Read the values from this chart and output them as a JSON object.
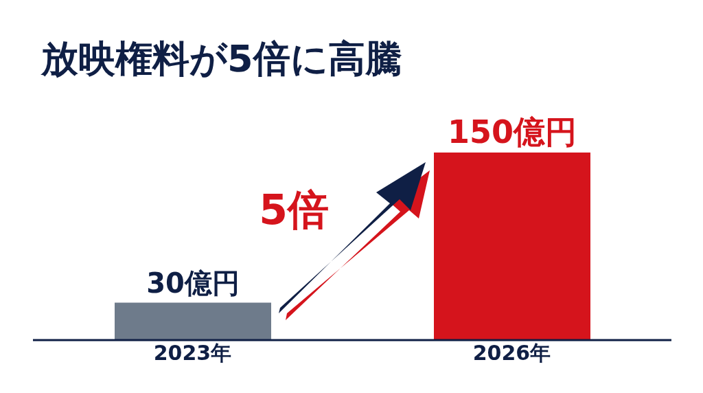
{
  "chart_data": {
    "type": "bar",
    "title": "放映権料が5倍に高騰",
    "categories": [
      "2023年",
      "2026年"
    ],
    "values": [
      30,
      150
    ],
    "colors": [
      "#6e7b8b",
      "#d5141c"
    ],
    "value_labels": [
      "30億円",
      "150億円"
    ],
    "annotations": [
      "5倍"
    ]
  }
}
